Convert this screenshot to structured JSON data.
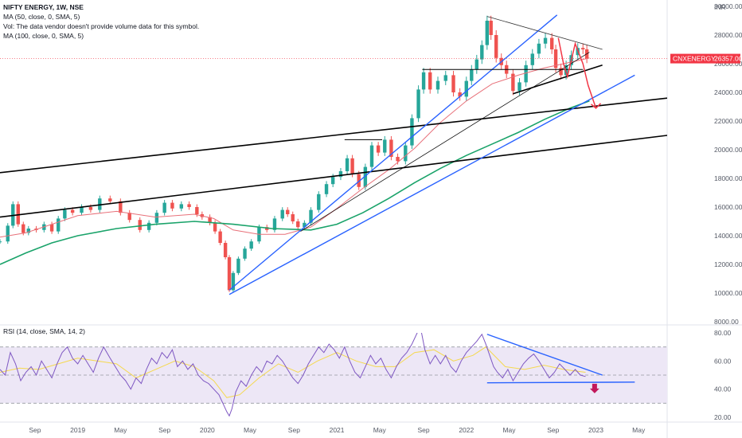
{
  "header": {
    "title": "NIFTY ENERGY, 1W, NSE",
    "indicators": [
      "MA (50, close, 0, SMA, 5)",
      "Vol: The data vendor doesn't provide volume data for this symbol.",
      "MA (100, close, 0, SMA, 5)"
    ],
    "rsi_label": "RSI (14, close, SMA, 14, 2)"
  },
  "colors": {
    "up": "#26a69a",
    "down": "#ef5350",
    "ma50": "#e8717a",
    "ma100": "#1aa36a",
    "channel": "#2962ff",
    "trendline": "#000000",
    "rsi": "#7e57c2",
    "rsi_ma": "#f5d94e",
    "rsi_band": "#ede7f6",
    "price_tag": "#f23645",
    "arrow": "#f23645",
    "down_arrow": "#c2185b"
  },
  "price_tag": {
    "symbol": "CNXENERGY",
    "price": "26357.00"
  },
  "chart_data": {
    "type": "candlestick",
    "title": "NIFTY ENERGY, 1W, NSE",
    "currency_label": "INR",
    "price_axis": {
      "ylim": [
        8000,
        30000
      ],
      "ticks": [
        "8000.00",
        "10000.00",
        "12000.00",
        "14000.00",
        "16000.00",
        "18000.00",
        "20000.00",
        "22000.00",
        "24000.00",
        "26000.00",
        "28000.00",
        "30000.00"
      ]
    },
    "rsi_axis": {
      "ylim": [
        20,
        80
      ],
      "ticks": [
        "20.00",
        "40.00",
        "60.00",
        "80.00"
      ],
      "overbought": 70,
      "oversold": 30
    },
    "time_axis": {
      "labels": [
        "Sep",
        "2019",
        "May",
        "Sep",
        "2020",
        "May",
        "Sep",
        "2021",
        "May",
        "Sep",
        "2022",
        "May",
        "Sep",
        "2023",
        "May"
      ],
      "label_x": [
        2018.67,
        2019.0,
        2019.33,
        2019.67,
        2020.0,
        2020.33,
        2020.67,
        2021.0,
        2021.33,
        2021.67,
        2022.0,
        2022.33,
        2022.67,
        2023.0,
        2023.33
      ],
      "xlim": [
        2018.4,
        2023.55
      ]
    },
    "price_path": [
      [
        2018.4,
        13600
      ],
      [
        2018.46,
        14700
      ],
      [
        2018.5,
        16200
      ],
      [
        2018.54,
        14800
      ],
      [
        2018.58,
        14200
      ],
      [
        2018.62,
        14500
      ],
      [
        2018.68,
        14400
      ],
      [
        2018.74,
        14800
      ],
      [
        2018.8,
        14300
      ],
      [
        2018.85,
        15200
      ],
      [
        2018.9,
        15800
      ],
      [
        2018.96,
        15600
      ],
      [
        2019.03,
        16000
      ],
      [
        2019.1,
        15800
      ],
      [
        2019.17,
        16600
      ],
      [
        2019.25,
        16400
      ],
      [
        2019.33,
        15600
      ],
      [
        2019.4,
        15100
      ],
      [
        2019.48,
        14400
      ],
      [
        2019.55,
        14900
      ],
      [
        2019.61,
        15600
      ],
      [
        2019.67,
        16300
      ],
      [
        2019.73,
        15900
      ],
      [
        2019.8,
        16200
      ],
      [
        2019.86,
        16000
      ],
      [
        2019.92,
        15500
      ],
      [
        2019.96,
        15300
      ],
      [
        2020.02,
        14900
      ],
      [
        2020.06,
        14300
      ],
      [
        2020.1,
        13500
      ],
      [
        2020.14,
        12500
      ],
      [
        2020.17,
        10200
      ],
      [
        2020.2,
        11400
      ],
      [
        2020.24,
        12400
      ],
      [
        2020.29,
        13100
      ],
      [
        2020.34,
        13600
      ],
      [
        2020.4,
        14600
      ],
      [
        2020.46,
        14400
      ],
      [
        2020.52,
        15200
      ],
      [
        2020.58,
        15800
      ],
      [
        2020.62,
        15500
      ],
      [
        2020.66,
        15000
      ],
      [
        2020.7,
        14600
      ],
      [
        2020.75,
        14900
      ],
      [
        2020.8,
        15800
      ],
      [
        2020.86,
        16900
      ],
      [
        2020.92,
        17600
      ],
      [
        2020.97,
        18100
      ],
      [
        2021.03,
        18500
      ],
      [
        2021.08,
        19400
      ],
      [
        2021.12,
        18300
      ],
      [
        2021.17,
        17400
      ],
      [
        2021.22,
        18800
      ],
      [
        2021.27,
        20300
      ],
      [
        2021.32,
        19800
      ],
      [
        2021.37,
        20700
      ],
      [
        2021.42,
        19500
      ],
      [
        2021.47,
        19200
      ],
      [
        2021.53,
        20300
      ],
      [
        2021.58,
        22200
      ],
      [
        2021.63,
        24200
      ],
      [
        2021.67,
        25400
      ],
      [
        2021.72,
        24200
      ],
      [
        2021.78,
        24800
      ],
      [
        2021.84,
        25200
      ],
      [
        2021.9,
        24000
      ],
      [
        2021.95,
        23700
      ],
      [
        2022.0,
        24800
      ],
      [
        2022.04,
        25600
      ],
      [
        2022.08,
        26300
      ],
      [
        2022.12,
        27300
      ],
      [
        2022.16,
        29000
      ],
      [
        2022.19,
        28000
      ],
      [
        2022.23,
        26400
      ],
      [
        2022.27,
        25900
      ],
      [
        2022.31,
        25300
      ],
      [
        2022.36,
        24100
      ],
      [
        2022.41,
        24700
      ],
      [
        2022.46,
        25900
      ],
      [
        2022.51,
        26700
      ],
      [
        2022.56,
        27400
      ],
      [
        2022.61,
        27800
      ],
      [
        2022.66,
        27000
      ],
      [
        2022.69,
        25700
      ],
      [
        2022.73,
        25200
      ],
      [
        2022.77,
        25900
      ],
      [
        2022.81,
        26600
      ],
      [
        2022.86,
        27100
      ],
      [
        2022.9,
        27000
      ],
      [
        2022.93,
        26357
      ]
    ],
    "ma50": [
      [
        2018.4,
        13900
      ],
      [
        2018.6,
        14200
      ],
      [
        2018.8,
        14800
      ],
      [
        2019.0,
        15400
      ],
      [
        2019.3,
        15700
      ],
      [
        2019.6,
        15300
      ],
      [
        2019.9,
        15500
      ],
      [
        2020.05,
        15200
      ],
      [
        2020.2,
        14400
      ],
      [
        2020.4,
        14100
      ],
      [
        2020.6,
        14100
      ],
      [
        2020.8,
        14600
      ],
      [
        2021.0,
        15900
      ],
      [
        2021.2,
        17300
      ],
      [
        2021.4,
        18600
      ],
      [
        2021.6,
        20100
      ],
      [
        2021.8,
        21900
      ],
      [
        2022.0,
        23400
      ],
      [
        2022.2,
        24600
      ],
      [
        2022.4,
        25200
      ],
      [
        2022.6,
        25700
      ],
      [
        2022.8,
        26100
      ],
      [
        2022.95,
        26400
      ]
    ],
    "ma100": [
      [
        2018.4,
        12000
      ],
      [
        2018.6,
        12800
      ],
      [
        2018.8,
        13500
      ],
      [
        2019.0,
        14000
      ],
      [
        2019.3,
        14500
      ],
      [
        2019.6,
        14800
      ],
      [
        2019.9,
        15000
      ],
      [
        2020.2,
        14800
      ],
      [
        2020.5,
        14500
      ],
      [
        2020.8,
        14400
      ],
      [
        2021.0,
        14800
      ],
      [
        2021.2,
        15600
      ],
      [
        2021.4,
        16600
      ],
      [
        2021.6,
        17700
      ],
      [
        2021.8,
        18700
      ],
      [
        2022.0,
        19600
      ],
      [
        2022.2,
        20400
      ],
      [
        2022.4,
        21200
      ],
      [
        2022.6,
        22100
      ],
      [
        2022.8,
        22900
      ],
      [
        2022.95,
        23400
      ]
    ],
    "rsi": [
      [
        2018.4,
        54
      ],
      [
        2018.44,
        50
      ],
      [
        2018.48,
        66
      ],
      [
        2018.52,
        58
      ],
      [
        2018.56,
        46
      ],
      [
        2018.6,
        52
      ],
      [
        2018.64,
        56
      ],
      [
        2018.68,
        50
      ],
      [
        2018.72,
        60
      ],
      [
        2018.76,
        54
      ],
      [
        2018.8,
        48
      ],
      [
        2018.84,
        58
      ],
      [
        2018.88,
        66
      ],
      [
        2018.92,
        70
      ],
      [
        2018.96,
        62
      ],
      [
        2019.0,
        58
      ],
      [
        2019.04,
        64
      ],
      [
        2019.08,
        58
      ],
      [
        2019.12,
        52
      ],
      [
        2019.16,
        62
      ],
      [
        2019.2,
        70
      ],
      [
        2019.25,
        62
      ],
      [
        2019.29,
        56
      ],
      [
        2019.33,
        50
      ],
      [
        2019.37,
        46
      ],
      [
        2019.41,
        40
      ],
      [
        2019.45,
        48
      ],
      [
        2019.49,
        44
      ],
      [
        2019.53,
        54
      ],
      [
        2019.57,
        62
      ],
      [
        2019.61,
        58
      ],
      [
        2019.65,
        66
      ],
      [
        2019.69,
        62
      ],
      [
        2019.73,
        68
      ],
      [
        2019.77,
        56
      ],
      [
        2019.81,
        60
      ],
      [
        2019.85,
        54
      ],
      [
        2019.89,
        58
      ],
      [
        2019.93,
        50
      ],
      [
        2019.97,
        46
      ],
      [
        2020.01,
        44
      ],
      [
        2020.05,
        40
      ],
      [
        2020.09,
        36
      ],
      [
        2020.12,
        30
      ],
      [
        2020.15,
        24
      ],
      [
        2020.17,
        21
      ],
      [
        2020.19,
        26
      ],
      [
        2020.22,
        38
      ],
      [
        2020.26,
        46
      ],
      [
        2020.3,
        42
      ],
      [
        2020.34,
        50
      ],
      [
        2020.38,
        56
      ],
      [
        2020.42,
        52
      ],
      [
        2020.46,
        60
      ],
      [
        2020.5,
        58
      ],
      [
        2020.54,
        64
      ],
      [
        2020.58,
        60
      ],
      [
        2020.62,
        54
      ],
      [
        2020.66,
        48
      ],
      [
        2020.7,
        44
      ],
      [
        2020.74,
        50
      ],
      [
        2020.78,
        58
      ],
      [
        2020.82,
        64
      ],
      [
        2020.86,
        70
      ],
      [
        2020.9,
        66
      ],
      [
        2020.94,
        72
      ],
      [
        2020.98,
        68
      ],
      [
        2021.02,
        62
      ],
      [
        2021.06,
        70
      ],
      [
        2021.1,
        60
      ],
      [
        2021.14,
        52
      ],
      [
        2021.18,
        48
      ],
      [
        2021.22,
        56
      ],
      [
        2021.26,
        64
      ],
      [
        2021.3,
        58
      ],
      [
        2021.34,
        62
      ],
      [
        2021.38,
        54
      ],
      [
        2021.42,
        48
      ],
      [
        2021.46,
        56
      ],
      [
        2021.5,
        62
      ],
      [
        2021.54,
        66
      ],
      [
        2021.58,
        72
      ],
      [
        2021.62,
        80
      ],
      [
        2021.65,
        82
      ],
      [
        2021.68,
        68
      ],
      [
        2021.72,
        58
      ],
      [
        2021.76,
        64
      ],
      [
        2021.8,
        58
      ],
      [
        2021.84,
        64
      ],
      [
        2021.88,
        56
      ],
      [
        2021.92,
        52
      ],
      [
        2021.96,
        60
      ],
      [
        2022.0,
        66
      ],
      [
        2022.04,
        70
      ],
      [
        2022.08,
        74
      ],
      [
        2022.12,
        79
      ],
      [
        2022.15,
        72
      ],
      [
        2022.18,
        64
      ],
      [
        2022.21,
        56
      ],
      [
        2022.24,
        52
      ],
      [
        2022.28,
        48
      ],
      [
        2022.32,
        54
      ],
      [
        2022.36,
        46
      ],
      [
        2022.4,
        52
      ],
      [
        2022.44,
        58
      ],
      [
        2022.48,
        62
      ],
      [
        2022.52,
        65
      ],
      [
        2022.56,
        60
      ],
      [
        2022.6,
        54
      ],
      [
        2022.64,
        48
      ],
      [
        2022.68,
        52
      ],
      [
        2022.72,
        58
      ],
      [
        2022.76,
        54
      ],
      [
        2022.8,
        50
      ],
      [
        2022.84,
        54
      ],
      [
        2022.88,
        50
      ],
      [
        2022.92,
        49
      ]
    ],
    "rsi_ma": [
      [
        2018.4,
        52
      ],
      [
        2018.55,
        55
      ],
      [
        2018.7,
        54
      ],
      [
        2018.85,
        58
      ],
      [
        2019.0,
        62
      ],
      [
        2019.15,
        60
      ],
      [
        2019.3,
        58
      ],
      [
        2019.45,
        48
      ],
      [
        2019.6,
        54
      ],
      [
        2019.75,
        60
      ],
      [
        2019.9,
        56
      ],
      [
        2020.05,
        46
      ],
      [
        2020.15,
        34
      ],
      [
        2020.25,
        36
      ],
      [
        2020.4,
        48
      ],
      [
        2020.55,
        58
      ],
      [
        2020.7,
        52
      ],
      [
        2020.85,
        60
      ],
      [
        2021.0,
        66
      ],
      [
        2021.15,
        60
      ],
      [
        2021.3,
        56
      ],
      [
        2021.45,
        56
      ],
      [
        2021.6,
        66
      ],
      [
        2021.75,
        68
      ],
      [
        2021.9,
        60
      ],
      [
        2022.05,
        64
      ],
      [
        2022.15,
        70
      ],
      [
        2022.3,
        56
      ],
      [
        2022.45,
        54
      ],
      [
        2022.6,
        57
      ],
      [
        2022.75,
        54
      ],
      [
        2022.92,
        52
      ]
    ],
    "drawings": {
      "channel_upper": [
        [
          2020.17,
          10200
        ],
        [
          2022.7,
          29400
        ]
      ],
      "channel_lower": [
        [
          2020.17,
          9900
        ],
        [
          2023.3,
          25200
        ]
      ],
      "trend_top": [
        [
          2018.4,
          18400
        ],
        [
          2023.55,
          23600
        ]
      ],
      "trend_bottom": [
        [
          2018.4,
          15300
        ],
        [
          2023.55,
          21000
        ]
      ],
      "support_line": [
        [
          2022.36,
          23900
        ],
        [
          2023.05,
          25900
        ]
      ],
      "thin_channel": [
        [
          2020.72,
          14300
        ],
        [
          2022.95,
          26800
        ]
      ],
      "resistance_flat": [
        [
          2021.66,
          25600
        ],
        [
          2022.9,
          25600
        ]
      ],
      "short_flat": [
        [
          2021.06,
          20700
        ],
        [
          2021.35,
          20700
        ]
      ],
      "triangle_top": [
        [
          2022.16,
          29300
        ],
        [
          2023.05,
          27000
        ]
      ],
      "projection": [
        [
          2022.71,
          27800
        ],
        [
          2022.75,
          26000
        ],
        [
          2022.78,
          25100
        ],
        [
          2022.84,
          27400
        ],
        [
          2022.9,
          26000
        ],
        [
          2022.94,
          24500
        ],
        [
          2023.0,
          22900
        ]
      ],
      "rsi_trend_down": [
        [
          2022.16,
          79
        ],
        [
          2023.05,
          50
        ]
      ],
      "rsi_trend_flat": [
        [
          2022.16,
          44.5
        ],
        [
          2023.3,
          45
        ]
      ]
    }
  }
}
